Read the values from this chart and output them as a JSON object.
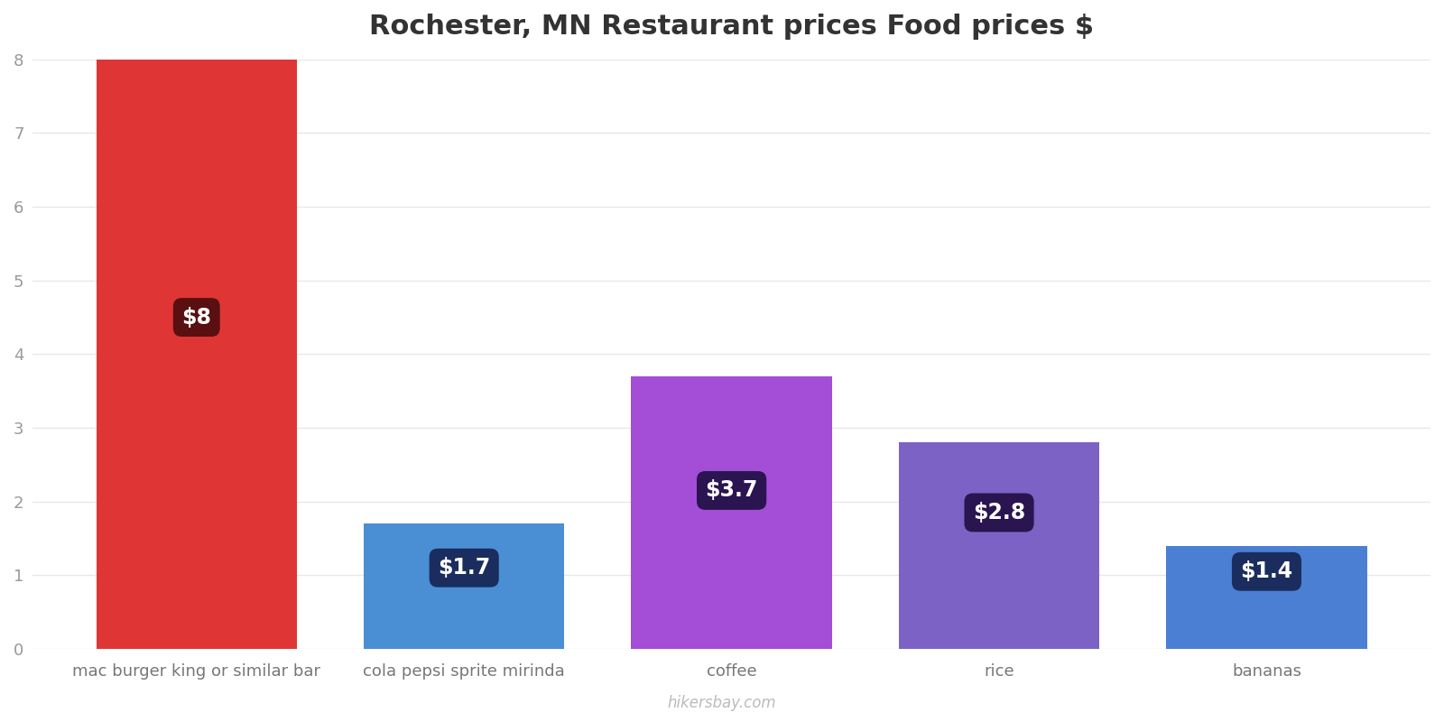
{
  "title": "Rochester, MN Restaurant prices Food prices $",
  "categories": [
    "mac burger king or similar bar",
    "cola pepsi sprite mirinda",
    "coffee",
    "rice",
    "bananas"
  ],
  "values": [
    8,
    1.7,
    3.7,
    2.8,
    1.4
  ],
  "labels": [
    "$8",
    "$1.7",
    "$3.7",
    "$2.8",
    "$1.4"
  ],
  "bar_colors": [
    "#e03535",
    "#4a8fd4",
    "#a44dd6",
    "#7b62c4",
    "#4a7fd4"
  ],
  "label_box_colors": [
    "#5a1010",
    "#1a2d5e",
    "#2a1550",
    "#2a1550",
    "#1a2d5e"
  ],
  "ylim": [
    0,
    8
  ],
  "yticks": [
    0,
    1,
    2,
    3,
    4,
    5,
    6,
    7,
    8
  ],
  "title_fontsize": 22,
  "tick_fontsize": 13,
  "label_fontsize": 17,
  "watermark": "hikersbay.com",
  "background_color": "#ffffff",
  "grid_color": "#e8e8e8",
  "label_positions_y": [
    4.5,
    1.1,
    2.15,
    1.85,
    1.05
  ],
  "bar_width": 0.75
}
